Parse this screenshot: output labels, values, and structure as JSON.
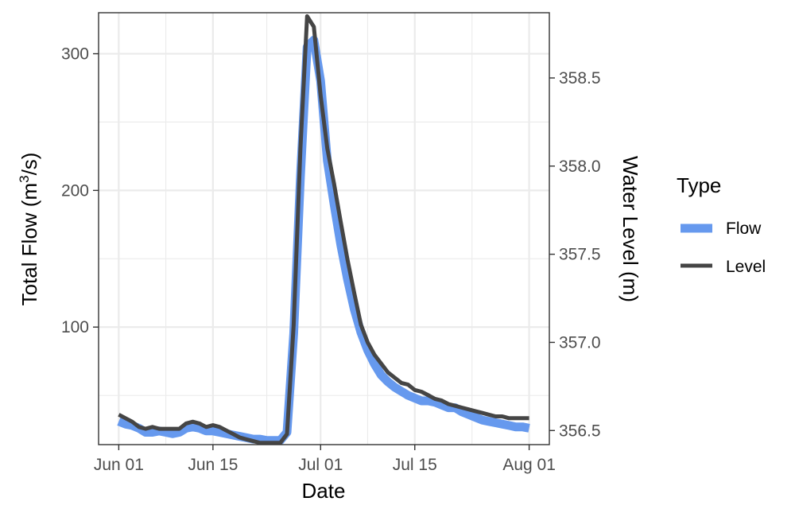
{
  "chart_data": {
    "type": "line",
    "xlabel": "Date",
    "ylabel_left": {
      "base": "Total Flow (m",
      "sup": "3",
      "tail": "/s)"
    },
    "ylabel_right": "Water Level (m)",
    "x_ticks": [
      {
        "date": "2021-06-01",
        "label": "Jun 01"
      },
      {
        "date": "2021-06-15",
        "label": "Jun 15"
      },
      {
        "date": "2021-07-01",
        "label": "Jul 01"
      },
      {
        "date": "2021-07-15",
        "label": "Jul 15"
      },
      {
        "date": "2021-08-01",
        "label": "Aug 01"
      }
    ],
    "xlim": [
      "2021-05-29",
      "2021-08-04"
    ],
    "ylim_left": [
      14,
      330
    ],
    "ylim_right": [
      356.42,
      358.87
    ],
    "y_ticks_left": [
      100,
      200,
      300
    ],
    "y_ticks_right": [
      356.5,
      357.0,
      357.5,
      358.0,
      358.5
    ],
    "y_tick_labels_right": [
      "356.5",
      "357.0",
      "357.5",
      "358.0",
      "358.5"
    ],
    "grid": true,
    "legend": {
      "title": "Type",
      "position": "right"
    },
    "colors": {
      "Flow": "#6699ee",
      "Level": "#454545"
    },
    "series": [
      {
        "name": "Flow",
        "axis": "left",
        "x": [
          "2021-06-01",
          "2021-06-02",
          "2021-06-03",
          "2021-06-04",
          "2021-06-05",
          "2021-06-06",
          "2021-06-07",
          "2021-06-08",
          "2021-06-09",
          "2021-06-10",
          "2021-06-11",
          "2021-06-12",
          "2021-06-13",
          "2021-06-14",
          "2021-06-15",
          "2021-06-16",
          "2021-06-17",
          "2021-06-18",
          "2021-06-19",
          "2021-06-20",
          "2021-06-21",
          "2021-06-22",
          "2021-06-23",
          "2021-06-24",
          "2021-06-25",
          "2021-06-26",
          "2021-06-27",
          "2021-06-28",
          "2021-06-29",
          "2021-06-30",
          "2021-07-01",
          "2021-07-02",
          "2021-07-03",
          "2021-07-04",
          "2021-07-05",
          "2021-07-06",
          "2021-07-07",
          "2021-07-08",
          "2021-07-09",
          "2021-07-10",
          "2021-07-11",
          "2021-07-12",
          "2021-07-13",
          "2021-07-14",
          "2021-07-15",
          "2021-07-16",
          "2021-07-17",
          "2021-07-18",
          "2021-07-19",
          "2021-07-20",
          "2021-07-21",
          "2021-07-22",
          "2021-07-23",
          "2021-07-24",
          "2021-07-25",
          "2021-07-26",
          "2021-07-27",
          "2021-07-28",
          "2021-07-29",
          "2021-07-30",
          "2021-07-31",
          "2021-08-01"
        ],
        "values": [
          31,
          29,
          28,
          26,
          23,
          23,
          24,
          23,
          22,
          23,
          26,
          27,
          26,
          24,
          24,
          23,
          22,
          21,
          20,
          19,
          18,
          18,
          17,
          17,
          17,
          23,
          95,
          210,
          305,
          310,
          280,
          222,
          190,
          160,
          135,
          113,
          96,
          83,
          73,
          65,
          60,
          56,
          53,
          50,
          48,
          46,
          46,
          45,
          43,
          41,
          41,
          38,
          36,
          34,
          32,
          31,
          30,
          29,
          28,
          27,
          27,
          26
        ]
      },
      {
        "name": "Level",
        "axis": "right",
        "x": [
          "2021-06-01",
          "2021-06-02",
          "2021-06-03",
          "2021-06-04",
          "2021-06-05",
          "2021-06-06",
          "2021-06-07",
          "2021-06-08",
          "2021-06-09",
          "2021-06-10",
          "2021-06-11",
          "2021-06-12",
          "2021-06-13",
          "2021-06-14",
          "2021-06-15",
          "2021-06-16",
          "2021-06-17",
          "2021-06-18",
          "2021-06-19",
          "2021-06-20",
          "2021-06-21",
          "2021-06-22",
          "2021-06-23",
          "2021-06-24",
          "2021-06-25",
          "2021-06-26",
          "2021-06-27",
          "2021-06-28",
          "2021-06-29",
          "2021-06-30",
          "2021-07-01",
          "2021-07-02",
          "2021-07-03",
          "2021-07-04",
          "2021-07-05",
          "2021-07-06",
          "2021-07-07",
          "2021-07-08",
          "2021-07-09",
          "2021-07-10",
          "2021-07-11",
          "2021-07-12",
          "2021-07-13",
          "2021-07-14",
          "2021-07-15",
          "2021-07-16",
          "2021-07-17",
          "2021-07-18",
          "2021-07-19",
          "2021-07-20",
          "2021-07-21",
          "2021-07-22",
          "2021-07-23",
          "2021-07-24",
          "2021-07-25",
          "2021-07-26",
          "2021-07-27",
          "2021-07-28",
          "2021-07-29",
          "2021-07-30",
          "2021-07-31",
          "2021-08-01"
        ],
        "values": [
          356.59,
          356.57,
          356.55,
          356.52,
          356.51,
          356.52,
          356.51,
          356.51,
          356.51,
          356.51,
          356.54,
          356.55,
          356.54,
          356.52,
          356.53,
          356.52,
          356.5,
          356.48,
          356.46,
          356.45,
          356.44,
          356.43,
          356.43,
          356.43,
          356.43,
          356.48,
          357.1,
          358.1,
          358.85,
          358.79,
          358.4,
          358.1,
          357.9,
          357.68,
          357.47,
          357.28,
          357.1,
          357.0,
          356.93,
          356.88,
          356.83,
          356.8,
          356.77,
          356.76,
          356.73,
          356.72,
          356.7,
          356.68,
          356.67,
          356.65,
          356.64,
          356.63,
          356.62,
          356.61,
          356.6,
          356.59,
          356.58,
          356.58,
          356.57,
          356.57,
          356.57,
          356.57
        ]
      }
    ]
  }
}
